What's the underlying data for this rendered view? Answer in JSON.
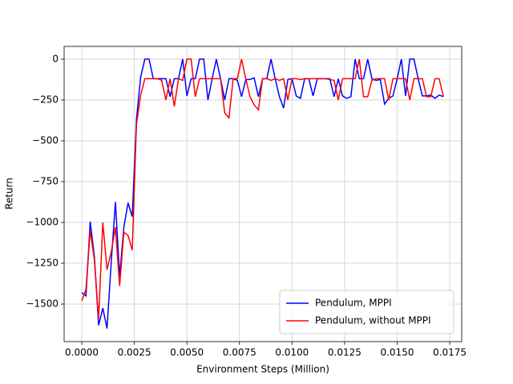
{
  "chart_data": {
    "type": "line",
    "xlabel": "Environment Steps (Million)",
    "ylabel": "Return",
    "x": [
      0,
      0.0002,
      0.0004,
      0.0006,
      0.0008,
      0.001,
      0.0012,
      0.0014,
      0.0016,
      0.0018,
      0.002,
      0.0022,
      0.0024,
      0.0026,
      0.0028,
      0.003,
      0.0032,
      0.0034,
      0.0036,
      0.0038,
      0.004,
      0.0042,
      0.0044,
      0.0046,
      0.0048,
      0.005,
      0.0052,
      0.0054,
      0.0056,
      0.0058,
      0.006,
      0.0062,
      0.0064,
      0.0066,
      0.0068,
      0.007,
      0.0072,
      0.0074,
      0.0076,
      0.0078,
      0.008,
      0.0082,
      0.0084,
      0.0086,
      0.0088,
      0.009,
      0.0092,
      0.0094,
      0.0096,
      0.0098,
      0.01,
      0.0102,
      0.0104,
      0.0106,
      0.0108,
      0.011,
      0.0112,
      0.0114,
      0.0116,
      0.0118,
      0.012,
      0.0122,
      0.0124,
      0.0126,
      0.0128,
      0.013,
      0.0132,
      0.0134,
      0.0136,
      0.0138,
      0.014,
      0.0142,
      0.0144,
      0.0146,
      0.0148,
      0.015,
      0.0152,
      0.0154,
      0.0156,
      0.0158,
      0.016,
      0.0162,
      0.0164,
      0.0166,
      0.0168,
      0.017,
      0.0172
    ],
    "series": [
      {
        "name": "Pendulum, MPPI",
        "color": "#0000ff",
        "values": [
          -1430,
          -1450,
          -995,
          -1210,
          -1630,
          -1525,
          -1650,
          -1245,
          -875,
          -1330,
          -1030,
          -880,
          -965,
          -370,
          -110,
          0,
          0,
          -120,
          -120,
          -120,
          -120,
          -230,
          -120,
          -120,
          0,
          -225,
          -120,
          -120,
          0,
          0,
          -250,
          -120,
          0,
          -120,
          -250,
          -120,
          -120,
          -130,
          -230,
          -125,
          -125,
          -115,
          -230,
          -120,
          -120,
          0,
          -120,
          -230,
          -300,
          -125,
          -120,
          -225,
          -240,
          -120,
          -120,
          -225,
          -120,
          -120,
          -120,
          -120,
          -230,
          -120,
          -225,
          -240,
          -230,
          0,
          -120,
          -120,
          0,
          -120,
          -130,
          -125,
          -275,
          -240,
          -225,
          -120,
          0,
          -225,
          0,
          0,
          -120,
          -225,
          -225,
          -220,
          -240,
          -220,
          -230
        ]
      },
      {
        "name": "Pendulum, without MPPI",
        "color": "#ff0000",
        "values": [
          -1480,
          -1410,
          -1050,
          -1230,
          -1590,
          -1000,
          -1290,
          -1180,
          -1030,
          -1390,
          -1060,
          -1080,
          -1170,
          -400,
          -220,
          -120,
          -120,
          -120,
          -120,
          -130,
          -250,
          -120,
          -290,
          -120,
          -130,
          0,
          0,
          -230,
          -120,
          -120,
          -120,
          -120,
          -120,
          -120,
          -330,
          -360,
          -120,
          -120,
          0,
          -120,
          -230,
          -280,
          -310,
          -120,
          -120,
          -130,
          -120,
          -130,
          -120,
          -250,
          -120,
          -120,
          -125,
          -120,
          -120,
          -120,
          -120,
          -120,
          -120,
          -125,
          -130,
          -250,
          -120,
          -120,
          -120,
          -120,
          0,
          -230,
          -230,
          -130,
          -120,
          -120,
          -120,
          -250,
          -120,
          -120,
          -120,
          -120,
          -250,
          -120,
          -120,
          -120,
          -230,
          -230,
          -120,
          -120,
          -230
        ]
      }
    ],
    "xlim": [
      -0.00084,
      0.01807
    ],
    "ylim": [
      -1730,
      78
    ],
    "xticks": [
      {
        "value": 0,
        "label": "0.0000"
      },
      {
        "value": 0.0025,
        "label": "0.0025"
      },
      {
        "value": 0.005,
        "label": "0.0050"
      },
      {
        "value": 0.0075,
        "label": "0.0075"
      },
      {
        "value": 0.01,
        "label": "0.0100"
      },
      {
        "value": 0.0125,
        "label": "0.0125"
      },
      {
        "value": 0.015,
        "label": "0.0150"
      },
      {
        "value": 0.0175,
        "label": "0.0175"
      }
    ],
    "yticks": [
      {
        "value": -1500,
        "label": "−1500"
      },
      {
        "value": -1250,
        "label": "−1250"
      },
      {
        "value": -1000,
        "label": "−1000"
      },
      {
        "value": -750,
        "label": "−750"
      },
      {
        "value": -500,
        "label": "−500"
      },
      {
        "value": -250,
        "label": "−250"
      },
      0
    ],
    "grid": true,
    "legend": "lower right"
  }
}
